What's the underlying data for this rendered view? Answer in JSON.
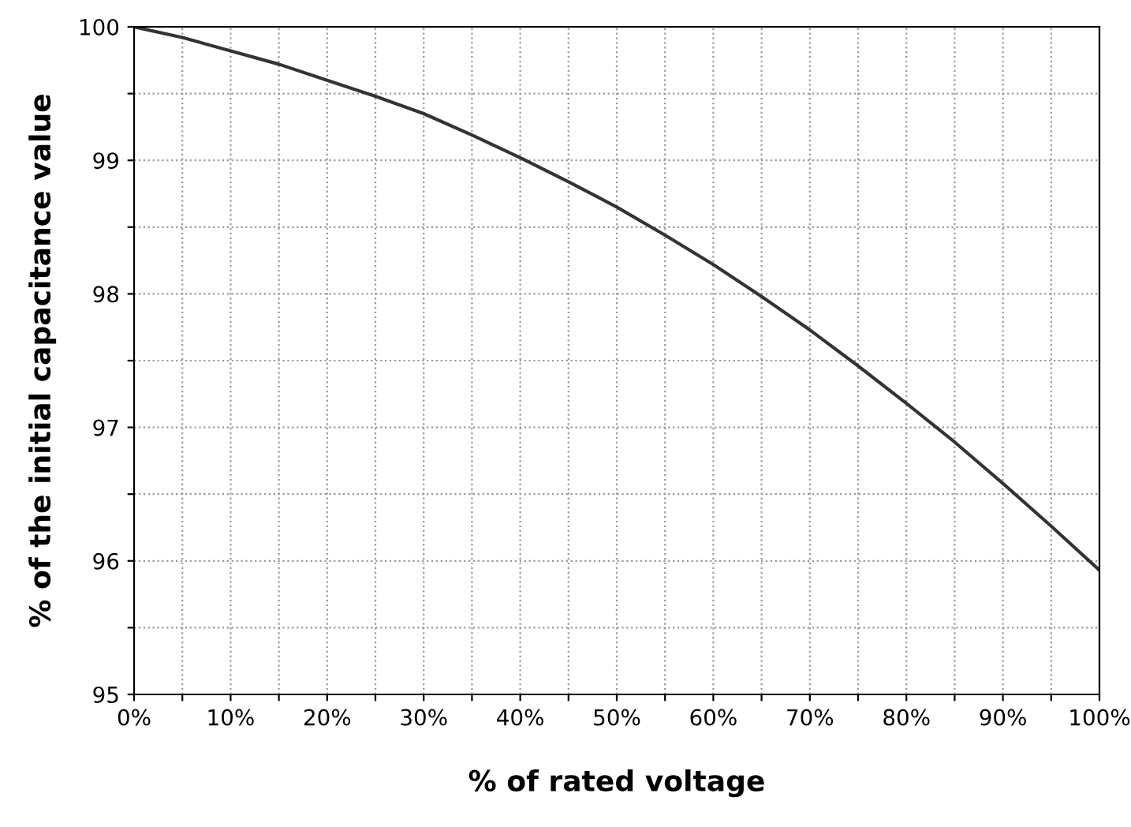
{
  "chart_data": {
    "type": "line",
    "xlabel": "% of rated voltage",
    "ylabel": "% of the initial capacitance value",
    "x": [
      0,
      5,
      10,
      15,
      20,
      25,
      30,
      35,
      40,
      45,
      50,
      55,
      60,
      65,
      70,
      75,
      80,
      85,
      90,
      95,
      100
    ],
    "series": [
      {
        "color": "#333333",
        "values": [
          100,
          99.92,
          99.82,
          99.72,
          99.6,
          99.48,
          99.35,
          99.19,
          99.02,
          98.84,
          98.65,
          98.44,
          98.22,
          97.98,
          97.73,
          97.46,
          97.18,
          96.89,
          96.58,
          96.26,
          95.93
        ]
      }
    ],
    "xlim": [
      0,
      100
    ],
    "ylim": [
      95,
      100
    ],
    "xticks": [
      {
        "value": 0,
        "label": "0%"
      },
      {
        "value": 5,
        "label": null
      },
      {
        "value": 10,
        "label": "10%"
      },
      {
        "value": 15,
        "label": null
      },
      {
        "value": 20,
        "label": "20%"
      },
      {
        "value": 25,
        "label": null
      },
      {
        "value": 30,
        "label": "30%"
      },
      {
        "value": 35,
        "label": null
      },
      {
        "value": 40,
        "label": "40%"
      },
      {
        "value": 45,
        "label": null
      },
      {
        "value": 50,
        "label": "50%"
      },
      {
        "value": 55,
        "label": null
      },
      {
        "value": 60,
        "label": "60%"
      },
      {
        "value": 65,
        "label": null
      },
      {
        "value": 70,
        "label": "70%"
      },
      {
        "value": 75,
        "label": null
      },
      {
        "value": 80,
        "label": "80%"
      },
      {
        "value": 85,
        "label": null
      },
      {
        "value": 90,
        "label": "90%"
      },
      {
        "value": 95,
        "label": null
      },
      {
        "value": 100,
        "label": "100%"
      }
    ],
    "yticks": [
      95,
      {
        "value": 95.5,
        "label": null
      },
      96,
      {
        "value": 96.5,
        "label": null
      },
      97,
      {
        "value": 97.5,
        "label": null
      },
      98,
      {
        "value": 98.5,
        "label": null
      },
      99,
      {
        "value": 99.5,
        "label": null
      },
      100
    ],
    "grid": true,
    "marker": "none",
    "line_style": "solid"
  }
}
